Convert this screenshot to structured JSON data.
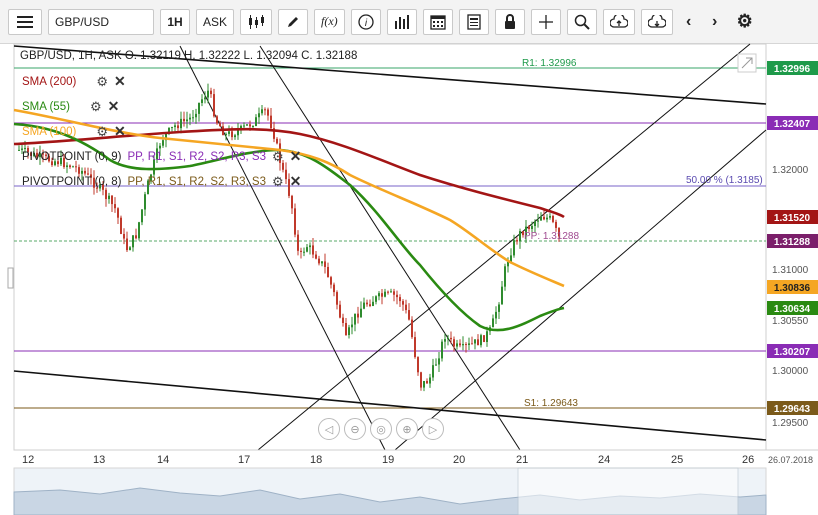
{
  "toolbar": {
    "menu_icon": "hamburger-menu-icon",
    "symbol": "GBP/USD",
    "timeframe": "1H",
    "price_type": "ASK",
    "fx_label": "f(x)",
    "info_label": "i"
  },
  "header": {
    "ohlc": "GBP/USD, 1H, ASK   O. 1.32119 H. 1.32222 L. 1.32094 C. 1.32188"
  },
  "indicators": [
    {
      "label": "SMA (200)",
      "color": "#a31515"
    },
    {
      "label": "SMA (55)",
      "color": "#2a8a12"
    },
    {
      "label": "SMA (100)",
      "color": "#f5a623"
    }
  ],
  "pivots": [
    {
      "label": "PIVOTPOINT (0, 9)",
      "items": "PP, R1, S1, R2, S2, R3, S3"
    },
    {
      "label": "PIVOTPOINT (0, 8)",
      "items": "PP, R1, S1, R2, S2, R3, S3"
    }
  ],
  "price_axis": {
    "ticks": [
      "1.32000",
      "1.31000",
      "1.30550",
      "1.30000",
      "1.29500"
    ],
    "badges": [
      {
        "text": "1.32996",
        "bg": "#1e9a4a"
      },
      {
        "text": "1.32407",
        "bg": "#8a2cb5"
      },
      {
        "text": "1.31520",
        "bg": "#a31515"
      },
      {
        "text": "1.31288",
        "bg": "#7b1f6a"
      },
      {
        "text": "1.30836",
        "bg": "#f5a623"
      },
      {
        "text": "1.30634",
        "bg": "#2a8a12"
      },
      {
        "text": "1.30207",
        "bg": "#8a2cb5"
      },
      {
        "text": "1.29643",
        "bg": "#7b5a1a"
      }
    ]
  },
  "annotations": {
    "r1": "R1: 1.32996",
    "fib": "50.00 % (1.3185)",
    "pp": "PP: 1.31288",
    "s1": "S1: 1.29643"
  },
  "time_axis": {
    "labels": [
      "12",
      "13",
      "14",
      "17",
      "18",
      "19",
      "20",
      "21",
      "24",
      "25",
      "26"
    ],
    "date": "26.07.2018"
  }
}
